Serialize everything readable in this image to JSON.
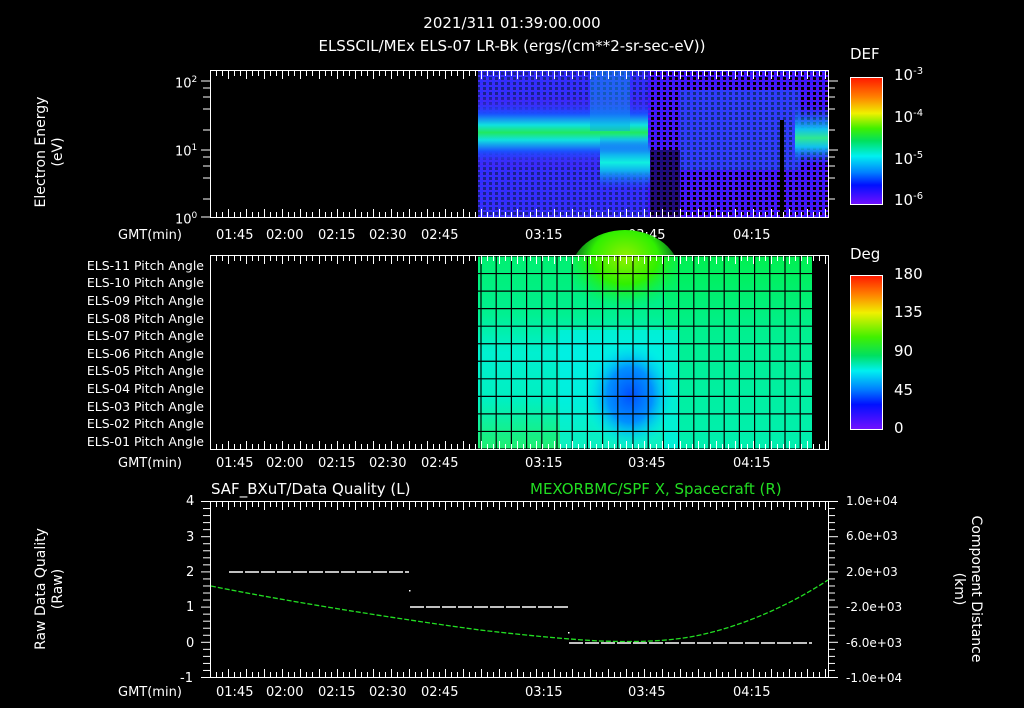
{
  "header": {
    "timestamp": "2021/311 01:39:00.000",
    "subtitle": "ELSSCIL/MEx ELS-07 LR-Bk  (ergs/(cm**2-sr-sec-eV))"
  },
  "time_axis": {
    "label": "GMT(min)",
    "ticks": [
      "01:45",
      "02:00",
      "02:15",
      "02:30",
      "02:45",
      "03:15",
      "03:45",
      "04:15"
    ]
  },
  "panel1": {
    "ylabel_line1": "Electron Energy",
    "ylabel_line2": "(eV)",
    "yticks": [
      {
        "base": "10",
        "exp": "2"
      },
      {
        "base": "10",
        "exp": "1"
      },
      {
        "base": "10",
        "exp": "0"
      }
    ],
    "colorbar": {
      "title": "DEF",
      "ticks": [
        {
          "base": "10",
          "exp": "-3"
        },
        {
          "base": "10",
          "exp": "-4"
        },
        {
          "base": "10",
          "exp": "-5"
        },
        {
          "base": "10",
          "exp": "-6"
        }
      ]
    }
  },
  "panel2": {
    "row_labels": [
      "ELS-11 Pitch Angle",
      "ELS-10 Pitch Angle",
      "ELS-09 Pitch Angle",
      "ELS-08 Pitch Angle",
      "ELS-07 Pitch Angle",
      "ELS-06 Pitch Angle",
      "ELS-05 Pitch Angle",
      "ELS-04 Pitch Angle",
      "ELS-03 Pitch Angle",
      "ELS-02 Pitch Angle",
      "ELS-01 Pitch Angle"
    ],
    "colorbar": {
      "title": "Deg",
      "ticks": [
        "180",
        "135",
        "90",
        "45",
        "0"
      ]
    }
  },
  "panel3": {
    "left_title": "SAF_BXuT/Data Quality (L)",
    "right_title": "MEXORBMC/SPF X, Spacecraft (R)",
    "right_title_color": "#22dd22",
    "ylabel_left_line1": "Raw Data Quality",
    "ylabel_left_line2": "(Raw)",
    "ylabel_right_line1": "Component Distance",
    "ylabel_right_line2": "(km)",
    "yticks_left": [
      "4",
      "3",
      "2",
      "1",
      "0",
      "-1"
    ],
    "yticks_right": [
      "1.0e+04",
      "6.0e+03",
      "2.0e+03",
      "-2.0e+03",
      "-6.0e+03",
      "-1.0e+04"
    ]
  },
  "chart_data": [
    {
      "type": "heatmap",
      "title": "ELSSCIL/MEx ELS-07 LR-Bk (ergs/(cm**2-sr-sec-eV))",
      "xlabel": "GMT(min)",
      "ylabel": "Electron Energy (eV)",
      "x_ticks": [
        "01:45",
        "02:00",
        "02:15",
        "02:30",
        "02:45",
        "03:15",
        "03:45",
        "04:15"
      ],
      "y_scale": "log",
      "ylim": [
        1,
        150
      ],
      "colorbar": {
        "label": "DEF",
        "scale": "log",
        "range": [
          1e-06,
          0.001
        ]
      },
      "data_start": "02:56",
      "notes": "Peak flux ~1e-4 near 15-20 eV at 02:56-03:10; band drops to ~5-8 eV around 03:15-03:40; sparse after 03:45, renewed band near 10-15 eV at 04:25-04:35"
    },
    {
      "type": "heatmap",
      "title": "ELS Pitch Angle",
      "xlabel": "GMT(min)",
      "rows": [
        "ELS-11",
        "ELS-10",
        "ELS-09",
        "ELS-08",
        "ELS-07",
        "ELS-06",
        "ELS-05",
        "ELS-04",
        "ELS-03",
        "ELS-02",
        "ELS-01"
      ],
      "colorbar": {
        "label": "Deg",
        "range": [
          0,
          180
        ],
        "ticks": [
          0,
          45,
          90,
          135,
          180
        ]
      },
      "data_range": [
        "02:56",
        "04:30"
      ],
      "notes": "Values ~90-110 deg for ELS-09..11, ~80-90 for ELS-05..08, minimum ~45 deg at ELS-02..05 around 03:30-03:45, upper rows reach ~120 deg at 03:30-03:45"
    },
    {
      "type": "line",
      "title": "SAF_BXuT/Data Quality (L) / MEXORBMC/SPF X, Spacecraft (R)",
      "xlabel": "GMT(min)",
      "series": [
        {
          "name": "Data Quality (L)",
          "color": "#ffffff",
          "axis": "left",
          "x": [
            "01:45",
            "02:36",
            "02:37",
            "03:21",
            "03:22",
            "04:30"
          ],
          "values": [
            2,
            2,
            1,
            1,
            0,
            0
          ]
        },
        {
          "name": "SPF X, Spacecraft (R)",
          "color": "#22dd22",
          "axis": "right",
          "x": [
            "01:39",
            "02:00",
            "02:30",
            "03:00",
            "03:20",
            "03:45",
            "04:00",
            "04:15",
            "04:30"
          ],
          "values": [
            1000,
            -400,
            -2200,
            -4000,
            -5000,
            -5800,
            -5000,
            -2800,
            800
          ]
        }
      ],
      "ylim_left": [
        -1,
        4
      ],
      "ylim_right": [
        -10000,
        10000
      ],
      "yticks_right": [
        10000,
        6000,
        2000,
        -2000,
        -6000,
        -10000
      ]
    }
  ]
}
